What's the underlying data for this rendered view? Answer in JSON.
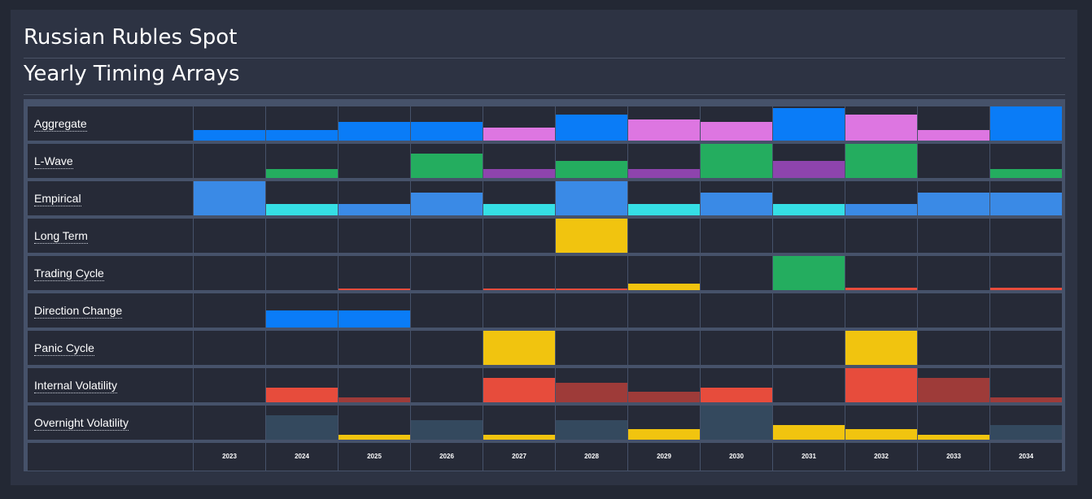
{
  "header": {
    "title": "Russian Rubles Spot",
    "subtitle": "Yearly Timing Arrays"
  },
  "colors": {
    "blue": "#0a7cf7",
    "pink": "#dd76e1",
    "green": "#24ad5f",
    "purple": "#8e44ad",
    "mid_blue": "#3a8ae6",
    "cyan": "#35dfe5",
    "yellow": "#f1c40f",
    "red": "#e74c3c",
    "dark_red": "#9e3b39",
    "slate": "#34495e",
    "cell_bg": "#262a37"
  },
  "chart_data": {
    "type": "heatmap",
    "title": "Yearly Timing Arrays",
    "value_scale": "bar height as fraction of full cell (0-1)",
    "categories": [
      "2023",
      "2024",
      "2025",
      "2026",
      "2027",
      "2028",
      "2029",
      "2030",
      "2031",
      "2032",
      "2033",
      "2034"
    ],
    "series": [
      {
        "name": "Aggregate",
        "values": [
          0.3,
          0.3,
          0.55,
          0.55,
          0.38,
          0.75,
          0.62,
          0.55,
          0.95,
          0.75,
          0.3,
          1.0
        ],
        "colors": [
          "blue",
          "blue",
          "blue",
          "blue",
          "pink",
          "blue",
          "pink",
          "pink",
          "blue",
          "pink",
          "pink",
          "blue"
        ]
      },
      {
        "name": "L-Wave",
        "values": [
          0,
          0.25,
          0,
          0.72,
          0.25,
          0.5,
          0.25,
          1.0,
          0.5,
          1.0,
          0,
          0.25
        ],
        "colors": [
          "green",
          "green",
          "green",
          "green",
          "purple",
          "green",
          "purple",
          "green",
          "purple",
          "green",
          "green",
          "green"
        ]
      },
      {
        "name": "Empirical",
        "values": [
          1.0,
          0.33,
          0.33,
          0.67,
          0.33,
          1.0,
          0.33,
          0.67,
          0.33,
          0.33,
          0.67,
          0.67
        ],
        "colors": [
          "mid_blue",
          "cyan",
          "mid_blue",
          "mid_blue",
          "cyan",
          "mid_blue",
          "cyan",
          "mid_blue",
          "cyan",
          "mid_blue",
          "mid_blue",
          "mid_blue"
        ]
      },
      {
        "name": "Long Term",
        "values": [
          0,
          0,
          0,
          0,
          0,
          1.0,
          0,
          0,
          0,
          0,
          0,
          0
        ],
        "colors": [
          "yellow",
          "yellow",
          "yellow",
          "yellow",
          "yellow",
          "yellow",
          "yellow",
          "yellow",
          "yellow",
          "yellow",
          "yellow",
          "yellow"
        ]
      },
      {
        "name": "Trading Cycle",
        "values": [
          0,
          0,
          0.04,
          0,
          0.05,
          0.05,
          0.2,
          0,
          1.0,
          0.08,
          0,
          0.07
        ],
        "colors": [
          "red",
          "red",
          "red",
          "red",
          "red",
          "red",
          "yellow",
          "green",
          "green",
          "red",
          "red",
          "red"
        ]
      },
      {
        "name": "Direction Change",
        "values": [
          0,
          0.5,
          0.5,
          0,
          0,
          0,
          0,
          0,
          0,
          0,
          0,
          0
        ],
        "colors": [
          "blue",
          "blue",
          "blue",
          "blue",
          "blue",
          "blue",
          "blue",
          "blue",
          "blue",
          "blue",
          "blue",
          "blue"
        ]
      },
      {
        "name": "Panic Cycle",
        "values": [
          0,
          0,
          0,
          0,
          1.0,
          0,
          0,
          0,
          0,
          1.0,
          0,
          0
        ],
        "colors": [
          "yellow",
          "yellow",
          "yellow",
          "yellow",
          "yellow",
          "yellow",
          "yellow",
          "yellow",
          "yellow",
          "yellow",
          "yellow",
          "yellow"
        ]
      },
      {
        "name": "Internal Volatility",
        "values": [
          0,
          0.42,
          0.15,
          0,
          0.72,
          0.58,
          0.3,
          0.42,
          0,
          1.0,
          0.72,
          0.15
        ],
        "colors": [
          "red",
          "red",
          "dark_red",
          "red",
          "red",
          "dark_red",
          "dark_red",
          "red",
          "red",
          "red",
          "dark_red",
          "dark_red"
        ]
      },
      {
        "name": "Overnight Volatility",
        "values": [
          0,
          0.72,
          0.15,
          0.58,
          0.15,
          0.58,
          0.3,
          1.0,
          0.44,
          0.3,
          0.15,
          0.44
        ],
        "colors": [
          "slate",
          "slate",
          "yellow",
          "slate",
          "yellow",
          "slate",
          "yellow",
          "slate",
          "yellow",
          "yellow",
          "yellow",
          "slate"
        ]
      }
    ]
  }
}
